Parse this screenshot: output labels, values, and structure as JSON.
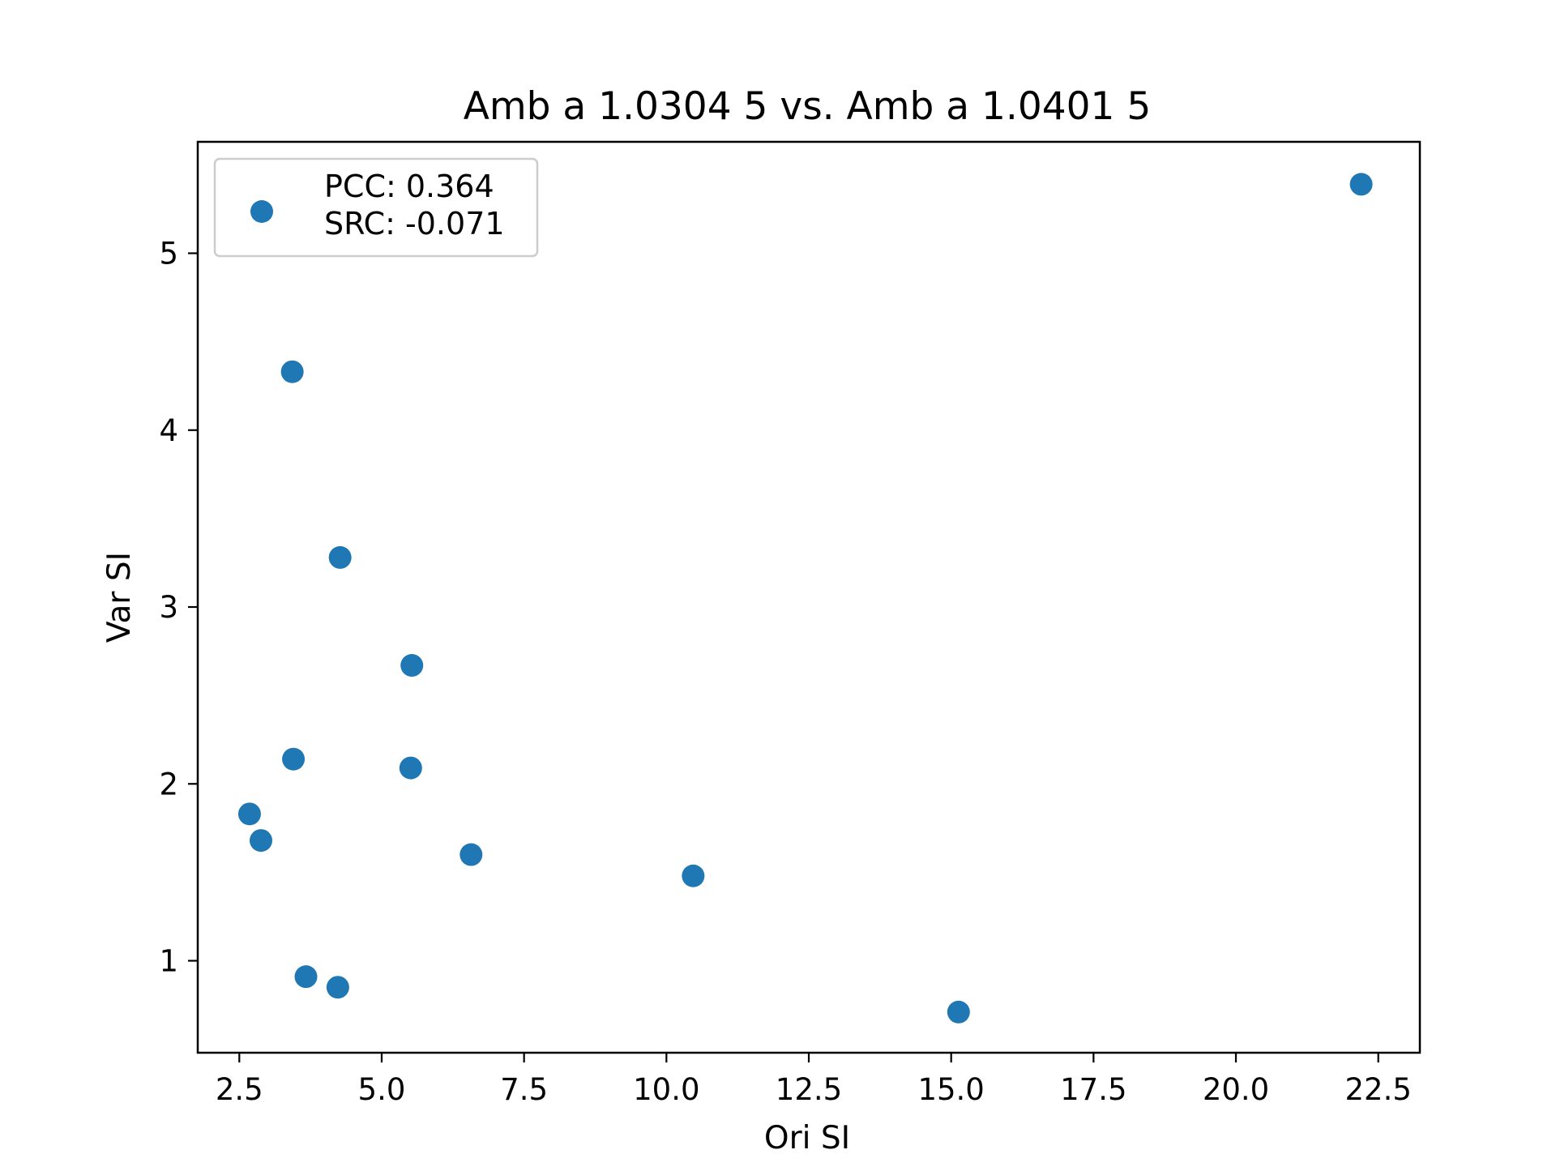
{
  "chart_data": {
    "type": "scatter",
    "title": "Amb a 1.0304 5 vs. Amb a 1.0401 5",
    "xlabel": "Ori SI",
    "ylabel": "Var SI",
    "xlim": [
      1.77,
      23.23
    ],
    "ylim": [
      0.48,
      5.63
    ],
    "xticks": [
      2.5,
      5.0,
      7.5,
      10.0,
      12.5,
      15.0,
      17.5,
      20.0,
      22.5
    ],
    "xtick_labels": [
      "2.5",
      "5.0",
      "7.5",
      "10.0",
      "12.5",
      "15.0",
      "17.5",
      "20.0",
      "22.5"
    ],
    "yticks": [
      1,
      2,
      3,
      4,
      5
    ],
    "ytick_labels": [
      "1",
      "2",
      "3",
      "4",
      "5"
    ],
    "grid": false,
    "legend": {
      "placement": "top-left",
      "lines": [
        "PCC: 0.364",
        "SRC: -0.071"
      ]
    },
    "marker_color": "#1f77b4",
    "series": [
      {
        "points": [
          {
            "x": 22.2,
            "y": 5.39
          },
          {
            "x": 3.43,
            "y": 4.33
          },
          {
            "x": 4.27,
            "y": 3.28
          },
          {
            "x": 5.53,
            "y": 2.67
          },
          {
            "x": 3.45,
            "y": 2.14
          },
          {
            "x": 5.51,
            "y": 2.09
          },
          {
            "x": 2.68,
            "y": 1.83
          },
          {
            "x": 2.88,
            "y": 1.68
          },
          {
            "x": 6.57,
            "y": 1.6
          },
          {
            "x": 10.47,
            "y": 1.48
          },
          {
            "x": 3.67,
            "y": 0.91
          },
          {
            "x": 4.23,
            "y": 0.85
          },
          {
            "x": 15.13,
            "y": 0.71
          }
        ]
      }
    ]
  }
}
